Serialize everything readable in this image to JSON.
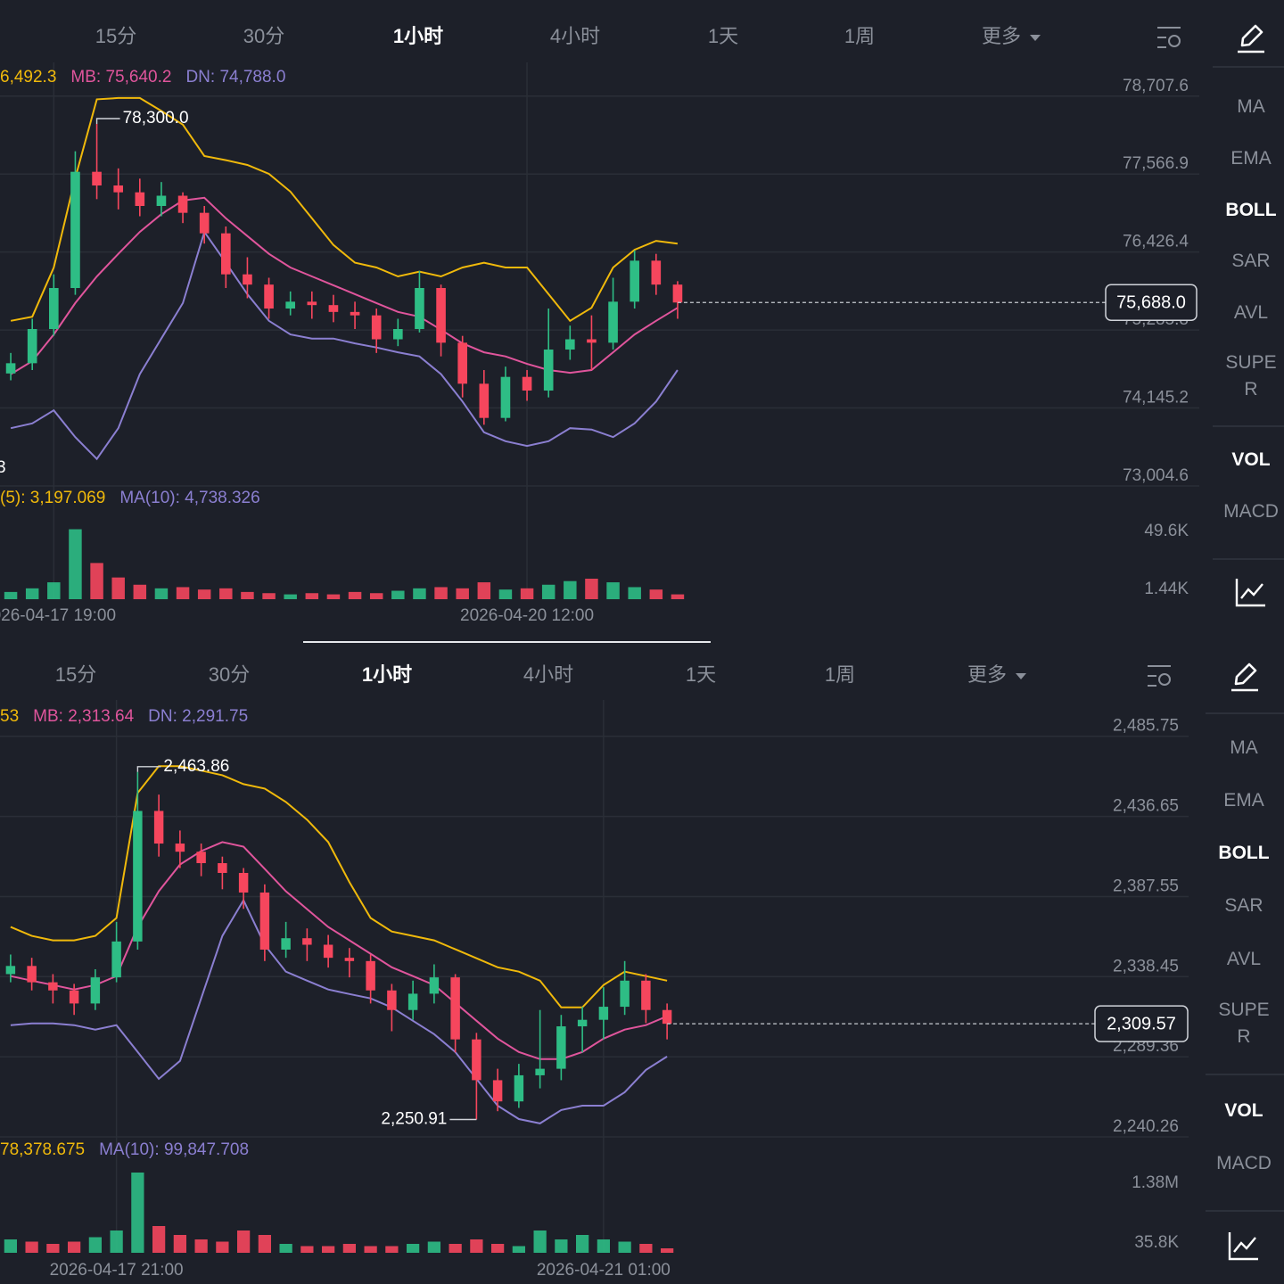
{
  "panels": [
    {
      "tabs": [
        "15分",
        "30分",
        "1小时",
        "4小时",
        "1天",
        "1周",
        "更多"
      ],
      "active_tab": 2,
      "sidebar": {
        "overlays": [
          "MA",
          "EMA",
          "BOLL",
          "SAR",
          "AVL",
          "SUPER"
        ],
        "active_overlay": 2,
        "panes": [
          "VOL",
          "MACD"
        ],
        "active_pane": 0
      },
      "chart_data": {
        "type": "candlestick",
        "up_color": "#2ebd85",
        "down_color": "#f6465d",
        "legend": [
          "6,492.3",
          "MB: 75,640.2",
          "DN: 74,788.0"
        ],
        "categories": [
          null,
          null,
          "026-04-17 19:00",
          null,
          null,
          null,
          null,
          null,
          null,
          null,
          null,
          null,
          null,
          null,
          null,
          null,
          null,
          null,
          null,
          null,
          null,
          null,
          null,
          null,
          "2026-04-20 12:00",
          null,
          null,
          null,
          null,
          null,
          null,
          null
        ],
        "open": [
          74650,
          74800,
          75300,
          75900,
          77600,
          77400,
          77300,
          77100,
          77250,
          77000,
          76700,
          76100,
          75950,
          75600,
          75700,
          75650,
          75550,
          75500,
          75150,
          75300,
          75900,
          75100,
          74500,
          74000,
          74600,
          74400,
          75000,
          75150,
          75100,
          75700,
          76300,
          75950
        ],
        "high": [
          74950,
          75450,
          76100,
          77900,
          78300,
          77650,
          77500,
          77450,
          77300,
          77100,
          76800,
          76350,
          76050,
          75850,
          75850,
          75800,
          75700,
          75600,
          75450,
          76150,
          75950,
          75200,
          74700,
          74750,
          74700,
          75600,
          75350,
          75500,
          76050,
          76450,
          76400,
          76000
        ],
        "low": [
          74550,
          74700,
          75200,
          75800,
          77200,
          77050,
          76950,
          76950,
          76850,
          76550,
          75900,
          75750,
          75450,
          75500,
          75450,
          75400,
          75300,
          74950,
          75050,
          75250,
          74900,
          74300,
          73900,
          73950,
          74250,
          74300,
          74850,
          74700,
          75000,
          75600,
          75800,
          75450
        ],
        "close": [
          74800,
          75300,
          75900,
          77600,
          77400,
          77300,
          77100,
          77250,
          77000,
          76700,
          76100,
          75950,
          75600,
          75700,
          75650,
          75550,
          75500,
          75150,
          75300,
          75900,
          75100,
          74500,
          74000,
          74600,
          74400,
          75000,
          75150,
          75100,
          75700,
          76300,
          75950,
          75688.0
        ],
        "bands": {
          "up": {
            "color": "#f0b90b",
            "values": [
              75420,
              75480,
              76200,
              77510,
              78660,
              78680,
              78680,
              78490,
              78290,
              77830,
              77770,
              77700,
              77570,
              77310,
              76920,
              76530,
              76270,
              76200,
              76070,
              76140,
              76070,
              76200,
              76270,
              76200,
              76200,
              75810,
              75420,
              75610,
              76200,
              76460,
              76590,
              76550
            ]
          },
          "mid": {
            "color": "#e0559c",
            "values": [
              74640,
              74830,
              75220,
              75680,
              76070,
              76400,
              76720,
              76980,
              77180,
              77220,
              76920,
              76660,
              76400,
              76200,
              76070,
              75940,
              75810,
              75680,
              75550,
              75480,
              75290,
              75090,
              74960,
              74900,
              74790,
              74700,
              74660,
              74700,
              74960,
              75220,
              75420,
              75610
            ]
          },
          "dn": {
            "color": "#8b7fd1",
            "values": [
              73850,
              73920,
              74110,
              73720,
              73400,
              73850,
              74640,
              75160,
              75680,
              76720,
              76270,
              75810,
              75420,
              75220,
              75160,
              75160,
              75090,
              75030,
              74960,
              74900,
              74640,
              74240,
              73790,
              73660,
              73590,
              73660,
              73850,
              73830,
              73720,
              73920,
              74240,
              74700
            ]
          }
        },
        "ylim": [
          73004.6,
          79200
        ],
        "yticks": [
          {
            "value": 78707.6,
            "label": "78,707.6"
          },
          {
            "value": 77566.9,
            "label": "77,566.9"
          },
          {
            "value": 76426.4,
            "label": "76,426.4"
          },
          {
            "value": 75285.8,
            "label": "75,285.8"
          },
          {
            "value": 74145.2,
            "label": "74,145.2"
          },
          {
            "value": 73004.6,
            "label": "73,004.6"
          }
        ],
        "last_label": "75,688.0",
        "high_label": "78,300.0",
        "offscreen_low_label": "3",
        "volume": {
          "values": [
            6000,
            9000,
            14000,
            58000,
            30000,
            18000,
            12000,
            9000,
            10000,
            8000,
            9000,
            6000,
            5000,
            4000,
            5000,
            4000,
            6000,
            5000,
            7000,
            9000,
            10000,
            9000,
            14000,
            8000,
            9000,
            12000,
            15000,
            17000,
            14000,
            10000,
            8000,
            4000
          ],
          "ylim": [
            0,
            68000
          ],
          "yticks": [
            {
              "value": 49600,
              "label": "49.6K"
            },
            {
              "value": 1440,
              "label": "1.44K"
            }
          ],
          "legend": [
            "(5): 3,197.069",
            "MA(10): 4,738.326"
          ],
          "legend_colors": [
            "#f0b90b",
            "#8b7fd1"
          ]
        }
      }
    },
    {
      "tabs": [
        "15分",
        "30分",
        "1小时",
        "4小时",
        "1天",
        "1周",
        "更多"
      ],
      "active_tab": 2,
      "sidebar": {
        "overlays": [
          "MA",
          "EMA",
          "BOLL",
          "SAR",
          "AVL",
          "SUPER"
        ],
        "active_overlay": 2,
        "panes": [
          "VOL",
          "MACD"
        ],
        "active_pane": 0
      },
      "chart_data": {
        "type": "candlestick",
        "up_color": "#2ebd85",
        "down_color": "#f6465d",
        "legend": [
          "53",
          "MB: 2,313.64",
          "DN: 2,291.75"
        ],
        "categories": [
          null,
          null,
          null,
          null,
          null,
          "2026-04-17 21:00",
          null,
          null,
          null,
          null,
          null,
          null,
          null,
          null,
          null,
          null,
          null,
          null,
          null,
          null,
          null,
          null,
          null,
          null,
          null,
          null,
          null,
          null,
          "2026-04-21 01:00",
          null,
          null,
          null
        ],
        "open": [
          2340,
          2345,
          2335,
          2330,
          2322,
          2338,
          2360,
          2440,
          2420,
          2415,
          2408,
          2402,
          2390,
          2355,
          2362,
          2358,
          2350,
          2348,
          2330,
          2318,
          2328,
          2338,
          2300,
          2275,
          2262,
          2278,
          2282,
          2308,
          2312,
          2320,
          2336,
          2318
        ],
        "high": [
          2352,
          2350,
          2340,
          2334,
          2343,
          2372,
          2463.86,
          2450,
          2428,
          2420,
          2412,
          2405,
          2395,
          2372,
          2368,
          2364,
          2356,
          2352,
          2334,
          2336,
          2346,
          2340,
          2304,
          2282,
          2285,
          2318,
          2315,
          2320,
          2332,
          2348,
          2340,
          2322
        ],
        "low": [
          2335,
          2330,
          2322,
          2315,
          2318,
          2335,
          2355,
          2412,
          2405,
          2400,
          2392,
          2380,
          2348,
          2350,
          2348,
          2344,
          2338,
          2322,
          2305,
          2312,
          2322,
          2292,
          2250.91,
          2256,
          2258,
          2270,
          2275,
          2292,
          2300,
          2315,
          2310,
          2300
        ],
        "close": [
          2345,
          2335,
          2330,
          2322,
          2338,
          2360,
          2440,
          2420,
          2415,
          2408,
          2402,
          2390,
          2355,
          2362,
          2358,
          2350,
          2348,
          2330,
          2318,
          2328,
          2338,
          2300,
          2275,
          2262,
          2278,
          2282,
          2308,
          2312,
          2320,
          2336,
          2318,
          2309.57
        ],
        "bands": {
          "up": {
            "color": "#f0b90b",
            "values": [
              2368.9,
              2363.4,
              2360.7,
              2360.7,
              2363.4,
              2374.4,
              2451.0,
              2467.4,
              2467.4,
              2464.7,
              2461.9,
              2456.4,
              2453.7,
              2445.5,
              2434.6,
              2420.9,
              2396.3,
              2374.4,
              2366.1,
              2363.4,
              2360.7,
              2355.2,
              2349.7,
              2344.2,
              2341.5,
              2336.0,
              2319.6,
              2319.6,
              2333.3,
              2341.5,
              2338.8,
              2336.0
            ]
          },
          "mid": {
            "color": "#e0559c",
            "values": [
              2338.8,
              2336.0,
              2333.3,
              2330.6,
              2333.3,
              2338.8,
              2368.9,
              2390.8,
              2407.2,
              2415.4,
              2420.9,
              2418.1,
              2404.5,
              2390.8,
              2379.8,
              2368.9,
              2360.7,
              2352.5,
              2344.2,
              2338.8,
              2333.3,
              2322.4,
              2311.4,
              2300.5,
              2292.3,
              2287.9,
              2287.9,
              2292.3,
              2300.5,
              2306.0,
              2308.7,
              2314.2
            ]
          },
          "dn": {
            "color": "#8b7fd1",
            "values": [
              2308.7,
              2309.8,
              2309.8,
              2308.7,
              2306.0,
              2308.7,
              2292.3,
              2275.8,
              2286.8,
              2325.1,
              2363.4,
              2385.3,
              2357.9,
              2341.5,
              2336.0,
              2330.6,
              2327.8,
              2325.1,
              2319.6,
              2311.4,
              2303.2,
              2292.3,
              2275.8,
              2259.4,
              2251.2,
              2248.5,
              2256.7,
              2259.4,
              2259.4,
              2267.6,
              2281.3,
              2289.5
            ]
          }
        },
        "ylim": [
          2240.26,
          2508
        ],
        "yticks": [
          {
            "value": 2485.75,
            "label": "2,485.75"
          },
          {
            "value": 2436.65,
            "label": "2,436.65"
          },
          {
            "value": 2387.55,
            "label": "2,387.55"
          },
          {
            "value": 2338.45,
            "label": "2,338.45"
          },
          {
            "value": 2289.36,
            "label": "2,289.36"
          },
          {
            "value": 2240.26,
            "label": "2,240.26"
          }
        ],
        "last_label": "2,309.57",
        "high_label": "2,463.86",
        "low_label": "2,250.91",
        "volume": {
          "values": [
            300000,
            250000,
            200000,
            250000,
            350000,
            500000,
            1800000,
            600000,
            400000,
            300000,
            250000,
            500000,
            400000,
            200000,
            150000,
            150000,
            200000,
            150000,
            150000,
            200000,
            250000,
            200000,
            300000,
            200000,
            150000,
            500000,
            300000,
            400000,
            300000,
            250000,
            200000,
            100000
          ],
          "ylim": [
            0,
            1900000
          ],
          "yticks": [
            {
              "value": 1380000,
              "label": "1.38M"
            },
            {
              "value": 35800,
              "label": "35.8K"
            }
          ],
          "legend": [
            "78,378.675",
            "MA(10): 99,847.708"
          ],
          "legend_colors": [
            "#f0b90b",
            "#8b7fd1"
          ]
        }
      }
    }
  ]
}
